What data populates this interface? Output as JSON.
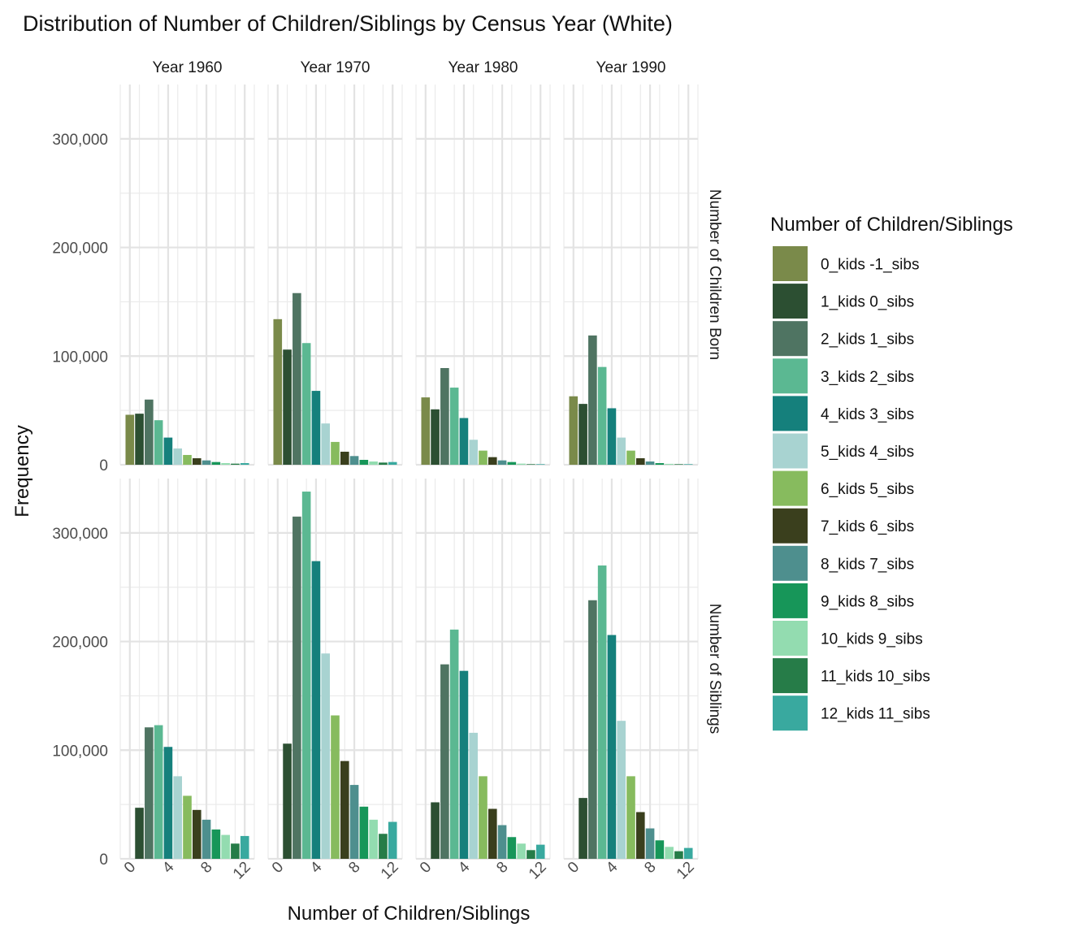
{
  "chart_data": {
    "type": "bar",
    "title": "Distribution of Number of Children/Siblings by Census Year (White)",
    "xlabel": "Number of Children/Siblings",
    "ylabel": "Frequency",
    "ylim": [
      0,
      350000
    ],
    "y_ticks": [
      0,
      100000,
      200000,
      300000
    ],
    "y_tick_labels": [
      "0",
      "100,000",
      "200,000",
      "300,000"
    ],
    "xlim": [
      -1,
      13
    ],
    "x_ticks": [
      0,
      4,
      8,
      12
    ],
    "x_tick_labels": [
      "0",
      "4",
      "8",
      "12"
    ],
    "grid": true,
    "legend_position": "right",
    "legend_title": "Number of Children/Siblings",
    "columns": [
      "Year 1960",
      "Year 1970",
      "Year 1980",
      "Year 1990"
    ],
    "rows": [
      "Number of Children Born",
      "Number of Siblings"
    ],
    "categories": [
      "0_kids -1_sibs",
      "1_kids 0_sibs",
      "2_kids 1_sibs",
      "3_kids 2_sibs",
      "4_kids 3_sibs",
      "5_kids 4_sibs",
      "6_kids 5_sibs",
      "7_kids 6_sibs",
      "8_kids 7_sibs",
      "9_kids 8_sibs",
      "10_kids 9_sibs",
      "11_kids 10_sibs",
      "12_kids 11_sibs"
    ],
    "colors": [
      "#7a8a4a",
      "#2c4f32",
      "#4f7462",
      "#5bb892",
      "#15807c",
      "#a8d3d1",
      "#87bb5e",
      "#3a3f1d",
      "#4e8f8e",
      "#179659",
      "#93dcb0",
      "#267c48",
      "#39a99f"
    ],
    "panels": [
      {
        "row": 0,
        "col": 0,
        "x": [
          0,
          1,
          2,
          3,
          4,
          5,
          6,
          7,
          8,
          9,
          10,
          11,
          12
        ],
        "values": [
          46000,
          47000,
          60000,
          41000,
          25000,
          15000,
          9000,
          6000,
          4000,
          2500,
          1500,
          1000,
          1500
        ]
      },
      {
        "row": 0,
        "col": 1,
        "x": [
          0,
          1,
          2,
          3,
          4,
          5,
          6,
          7,
          8,
          9,
          10,
          11,
          12
        ],
        "values": [
          134000,
          106000,
          158000,
          112000,
          68000,
          38000,
          21000,
          12000,
          8000,
          4500,
          3000,
          2000,
          2500
        ]
      },
      {
        "row": 0,
        "col": 2,
        "x": [
          0,
          1,
          2,
          3,
          4,
          5,
          6,
          7,
          8,
          9,
          10,
          11,
          12
        ],
        "values": [
          62000,
          51000,
          89000,
          71000,
          43000,
          23000,
          13000,
          7000,
          4000,
          2500,
          1000,
          500,
          500
        ]
      },
      {
        "row": 0,
        "col": 3,
        "x": [
          0,
          1,
          2,
          3,
          4,
          5,
          6,
          7,
          8,
          9,
          10,
          11,
          12
        ],
        "values": [
          63000,
          56000,
          119000,
          90000,
          52000,
          25000,
          13000,
          6000,
          3000,
          1500,
          800,
          500,
          500
        ]
      },
      {
        "row": 1,
        "col": 0,
        "x": [
          1,
          2,
          3,
          4,
          5,
          6,
          7,
          8,
          9,
          10,
          11,
          12
        ],
        "values": [
          47000,
          121000,
          123000,
          103000,
          76000,
          58000,
          45000,
          36000,
          27000,
          22000,
          14000,
          21000
        ]
      },
      {
        "row": 1,
        "col": 1,
        "x": [
          1,
          2,
          3,
          4,
          5,
          6,
          7,
          8,
          9,
          10,
          11,
          12
        ],
        "values": [
          106000,
          315000,
          338000,
          274000,
          189000,
          132000,
          90000,
          68000,
          48000,
          36000,
          23000,
          34000
        ]
      },
      {
        "row": 1,
        "col": 2,
        "x": [
          1,
          2,
          3,
          4,
          5,
          6,
          7,
          8,
          9,
          10,
          11,
          12
        ],
        "values": [
          52000,
          179000,
          211000,
          173000,
          116000,
          76000,
          46000,
          31000,
          20000,
          14000,
          8000,
          13000
        ]
      },
      {
        "row": 1,
        "col": 3,
        "x": [
          1,
          2,
          3,
          4,
          5,
          6,
          7,
          8,
          9,
          10,
          11,
          12
        ],
        "values": [
          56000,
          238000,
          270000,
          206000,
          127000,
          76000,
          43000,
          28000,
          17000,
          11000,
          7000,
          10000
        ]
      }
    ]
  }
}
